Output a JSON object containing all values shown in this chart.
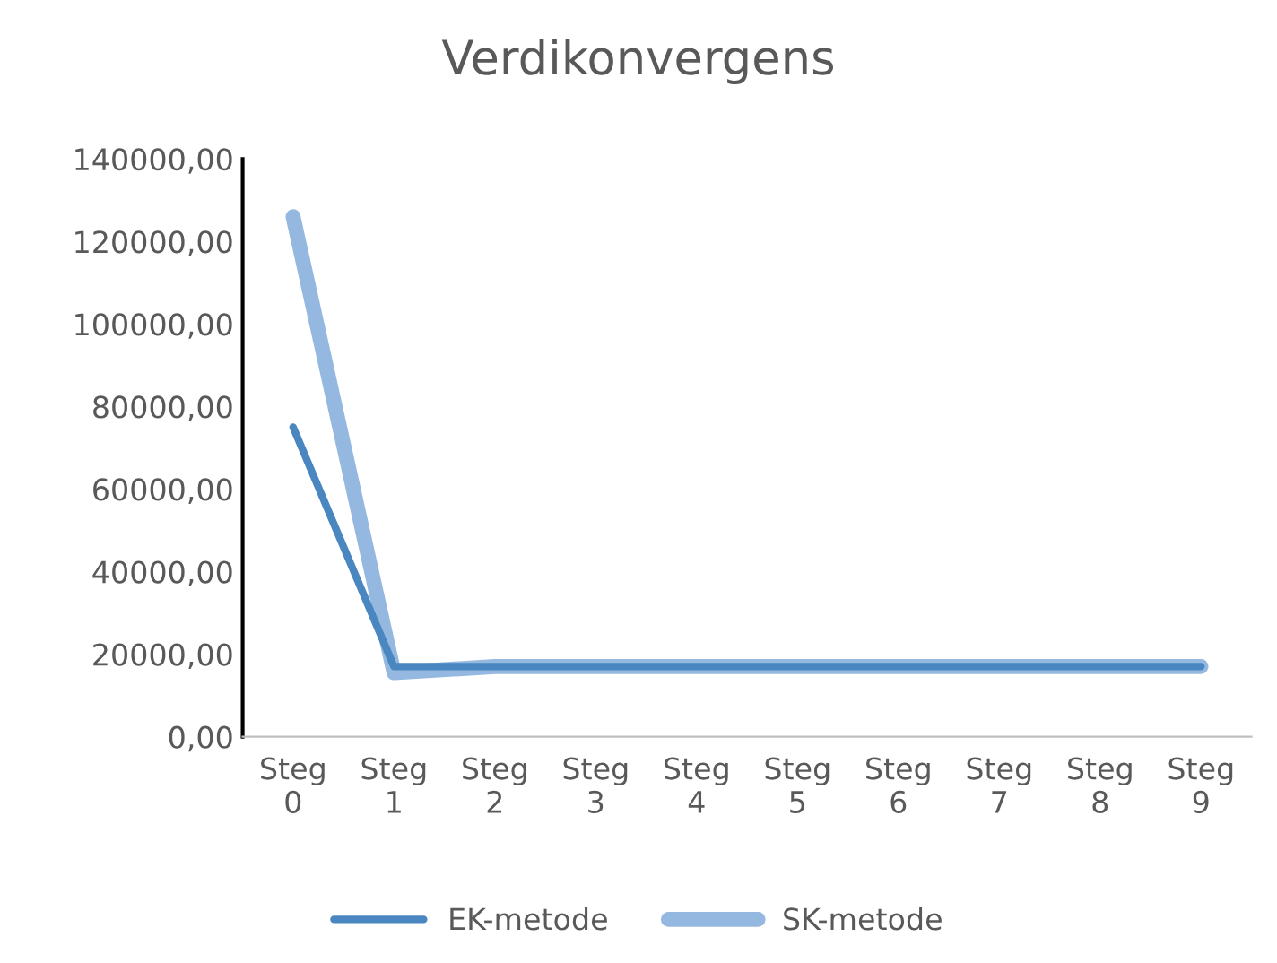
{
  "chart_data": {
    "type": "line",
    "title": "Verdikonvergens",
    "categories": [
      "Steg\n0",
      "Steg\n1",
      "Steg\n2",
      "Steg\n3",
      "Steg\n4",
      "Steg\n5",
      "Steg\n6",
      "Steg\n7",
      "Steg\n8",
      "Steg\n9"
    ],
    "series": [
      {
        "name": "EK-metode",
        "color": "#4a86bf",
        "values": [
          75000,
          17000,
          17000,
          17000,
          17000,
          17000,
          17000,
          17000,
          17000,
          17000
        ]
      },
      {
        "name": "SK-metode",
        "color": "#95b8e0",
        "values": [
          126000,
          15500,
          17000,
          17000,
          17000,
          17000,
          17000,
          17000,
          17000,
          17000
        ]
      }
    ],
    "ylim": [
      0,
      140000
    ],
    "yticks": [
      {
        "value": 0,
        "label": "0,00"
      },
      {
        "value": 20000,
        "label": "20000,00"
      },
      {
        "value": 40000,
        "label": "40000,00"
      },
      {
        "value": 60000,
        "label": "60000,00"
      },
      {
        "value": 80000,
        "label": "80000,00"
      },
      {
        "value": 100000,
        "label": "100000,00"
      },
      {
        "value": 120000,
        "label": "120000,00"
      },
      {
        "value": 140000,
        "label": "140000,00"
      }
    ],
    "grid": false,
    "legend": "bottom",
    "marker": "none",
    "line_style": "solid"
  }
}
